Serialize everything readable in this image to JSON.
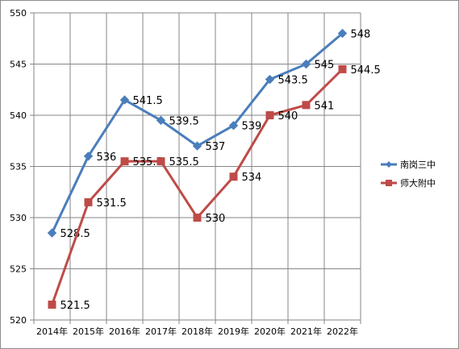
{
  "chart_data": {
    "type": "line",
    "title": "",
    "xlabel": "",
    "ylabel": "",
    "categories": [
      "2014年",
      "2015年",
      "2016年",
      "2017年",
      "2018年",
      "2019年",
      "2020年",
      "2021年",
      "2022年"
    ],
    "ylim": [
      520,
      550
    ],
    "yticks": [
      520,
      525,
      530,
      535,
      540,
      545,
      550
    ],
    "grid": true,
    "legend": "right",
    "series": [
      {
        "name": "南岗三中",
        "color": "#4a7ebb",
        "marker": "diamond",
        "values": [
          528.5,
          536,
          541.5,
          539.5,
          537,
          539,
          543.5,
          545,
          548
        ],
        "labels": [
          "528.5",
          "536",
          "541.5",
          "539.5",
          "537",
          "539",
          "543.5",
          "545",
          "548"
        ]
      },
      {
        "name": "师大附中",
        "color": "#be4b48",
        "marker": "square",
        "values": [
          521.5,
          531.5,
          535.5,
          535.5,
          530,
          534,
          540,
          541,
          544.5
        ],
        "labels": [
          "521.5",
          "531.5",
          "535.5",
          "535.5",
          "530",
          "534",
          "540",
          "541",
          "544.5"
        ]
      }
    ]
  }
}
